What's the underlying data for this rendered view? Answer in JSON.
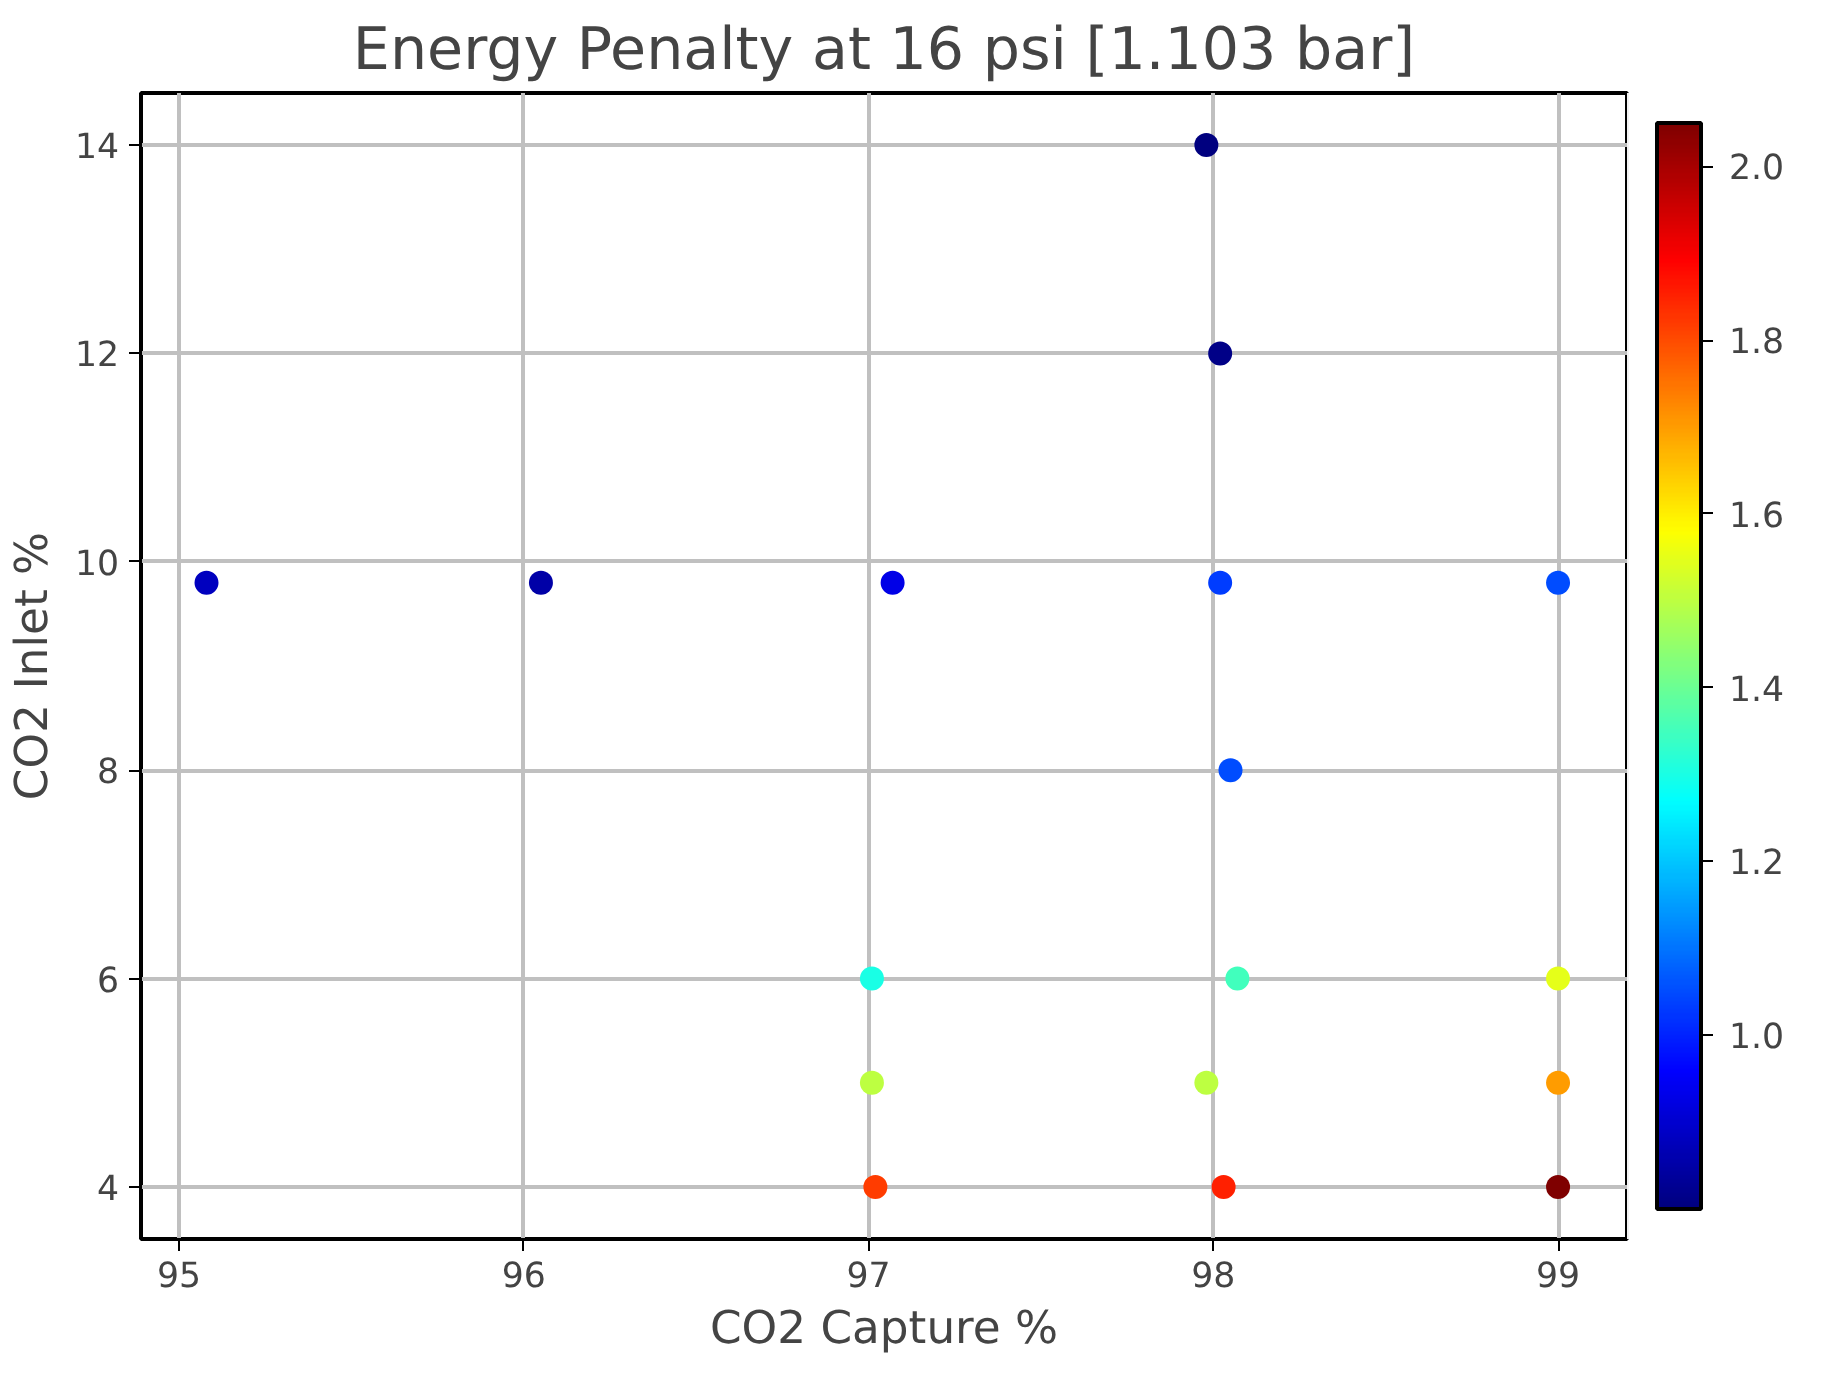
{
  "chart_data": {
    "type": "scatter",
    "title": "Energy Penalty at 16 psi [1.103 bar]",
    "xlabel": "CO2 Capture %",
    "ylabel": "CO2 Inlet %",
    "x": [
      95.08,
      96.05,
      97.07,
      98.02,
      99.0,
      97.98,
      98.02,
      98.05,
      97.01,
      98.07,
      99.0,
      97.01,
      97.98,
      99.0,
      97.02,
      98.03,
      99.0
    ],
    "values": [
      9.8,
      9.8,
      9.8,
      9.8,
      9.8,
      14,
      12,
      8,
      6,
      6,
      6,
      5,
      5,
      5,
      4,
      4,
      4
    ],
    "cvalues": [
      0.88,
      0.85,
      0.93,
      1.03,
      1.05,
      0.8,
      0.81,
      1.05,
      1.3,
      1.35,
      1.55,
      1.5,
      1.5,
      1.7,
      1.82,
      1.85,
      2.05
    ],
    "clim": [
      0.8,
      2.05
    ],
    "cticks": [
      {
        "value": 1.0,
        "label": "1.0"
      },
      1.2,
      1.4,
      1.6,
      1.8,
      {
        "value": 2.0,
        "label": "2.0"
      }
    ],
    "xlim": [
      94.89,
      99.2
    ],
    "ylim": [
      3.5,
      14.5
    ],
    "xticks": [
      95,
      96,
      97,
      98,
      99
    ],
    "yticks": [
      4,
      6,
      8,
      10,
      12,
      14
    ],
    "grid": true,
    "marker": "circle"
  }
}
